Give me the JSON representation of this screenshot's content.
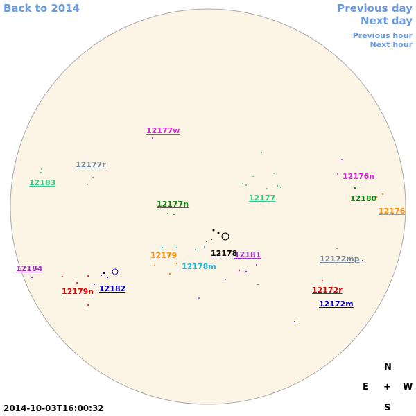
{
  "nav": {
    "back": "Back to 2014",
    "previous_day": "Previous day",
    "next_day": "Next day",
    "previous_hour": "Previous hour",
    "next_hour": "Next hour"
  },
  "regions": [
    {
      "label": "12177w",
      "color": "#dd22dd"
    },
    {
      "label": "12177r",
      "color": "#778899"
    },
    {
      "label": "12183",
      "color": "#33cc88"
    },
    {
      "label": "12177",
      "color": "#33cc88"
    },
    {
      "label": "12176n",
      "color": "#dd22dd"
    },
    {
      "label": "12180",
      "color": "#118811"
    },
    {
      "label": "12176",
      "color": "#ff8c00"
    },
    {
      "label": "12177n",
      "color": "#118811"
    },
    {
      "label": "12178",
      "color": "#000000"
    },
    {
      "label": "12181",
      "color": "#9933bb"
    },
    {
      "label": "12179",
      "color": "#ff8c00"
    },
    {
      "label": "12178m",
      "color": "#22bbdd"
    },
    {
      "label": "12184",
      "color": "#9933bb"
    },
    {
      "label": "12172mp",
      "color": "#778899"
    },
    {
      "label": "12182",
      "color": "#0000cc"
    },
    {
      "label": "12179n",
      "color": "#dd0000"
    },
    {
      "label": "12172r",
      "color": "#dd0000"
    },
    {
      "label": "12172m",
      "color": "#0000cc"
    }
  ],
  "timestamp": "2014-10-03T16:00:32",
  "compass": {
    "north": "N",
    "east": "E",
    "center": "+",
    "west": "W",
    "south": "S"
  }
}
